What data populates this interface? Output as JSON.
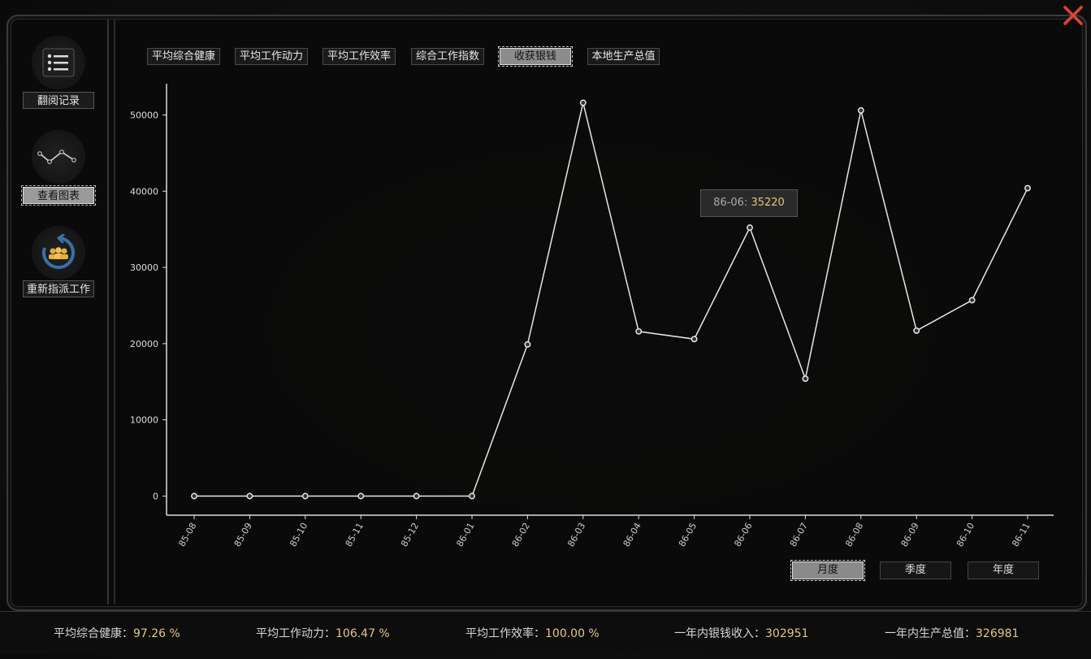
{
  "sidebar": {
    "items": [
      {
        "label": "翻阅记录",
        "icon": "list-icon"
      },
      {
        "label": "查看图表",
        "icon": "line-chart-icon",
        "active": true
      },
      {
        "label": "重新指派工作",
        "icon": "reassign-workers-icon"
      }
    ]
  },
  "tabs": [
    {
      "label": "平均综合健康"
    },
    {
      "label": "平均工作动力"
    },
    {
      "label": "平均工作效率"
    },
    {
      "label": "综合工作指数"
    },
    {
      "label": "收获银钱",
      "active": true
    },
    {
      "label": "本地生产总值"
    }
  ],
  "periods": [
    {
      "label": "月度",
      "active": true
    },
    {
      "label": "季度"
    },
    {
      "label": "年度"
    }
  ],
  "tooltip": {
    "label": "86-06:",
    "value": "35220"
  },
  "footer": {
    "health_label": "平均综合健康：",
    "health_value": "97.26 %",
    "motivation_label": "平均工作动力：",
    "motivation_value": "106.47 %",
    "efficiency_label": "平均工作效率：",
    "efficiency_value": "100.00 %",
    "income_label": "一年内银钱收入：",
    "income_value": "302951",
    "gdp_label": "一年内生产总值：",
    "gdp_value": "326981"
  },
  "colors": {
    "accent_value": "#e0c78c",
    "line": "#e6e6e6",
    "background": "#0d0d0d"
  },
  "chart_data": {
    "type": "line",
    "categories": [
      "85-08",
      "85-09",
      "85-10",
      "85-11",
      "85-12",
      "86-01",
      "86-02",
      "86-03",
      "86-04",
      "86-05",
      "86-06",
      "86-07",
      "86-08",
      "86-09",
      "86-10",
      "86-11"
    ],
    "values": [
      0,
      0,
      0,
      0,
      0,
      0,
      19900,
      51600,
      21600,
      20600,
      35220,
      15400,
      50600,
      21700,
      25700,
      40400
    ],
    "yticks": [
      0,
      10000,
      20000,
      30000,
      40000,
      50000
    ],
    "ylim": [
      0,
      52500
    ],
    "grid": false
  }
}
